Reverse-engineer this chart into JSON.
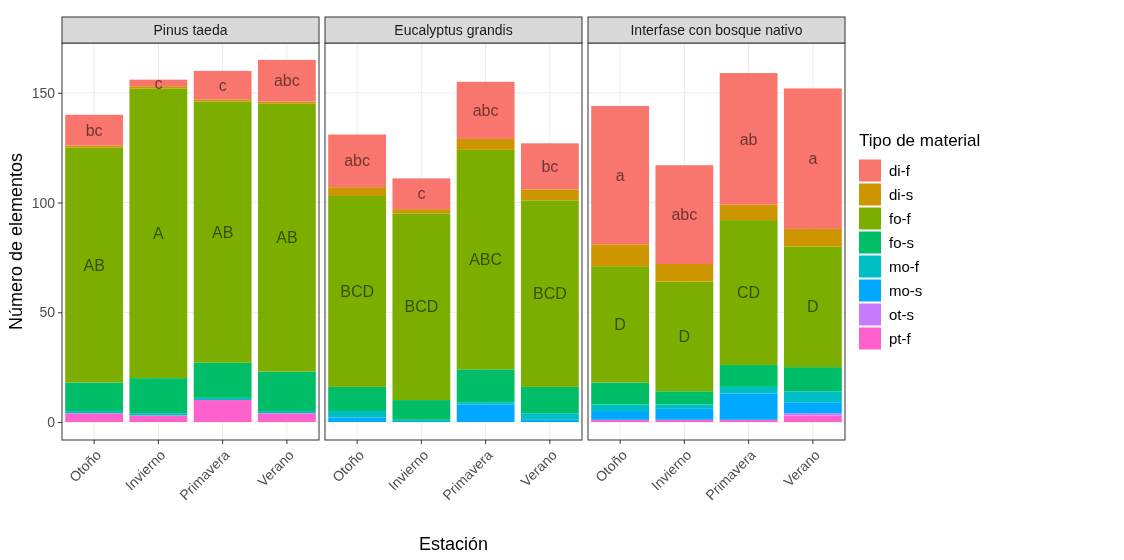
{
  "chart_data": [
    {
      "type": "bar",
      "stacked": true,
      "title": "Pinus taeda",
      "ylabel": "Número de elementos",
      "categories": [
        "Otoño",
        "Invierno",
        "Primavera",
        "Verano"
      ],
      "ylim": [
        -8.2,
        172.7
      ],
      "yticks": [
        0,
        50,
        100,
        150
      ],
      "grid": true,
      "legend": false,
      "series": [
        {
          "color": "#ff61cc",
          "values": [
            4,
            3,
            10,
            4
          ]
        },
        {
          "color": "#c77cff",
          "values": [
            0,
            0,
            0,
            0
          ]
        },
        {
          "color": "#00a9ff",
          "values": [
            0,
            0,
            0,
            0
          ]
        },
        {
          "color": "#00bfc4",
          "values": [
            1,
            1,
            1,
            1
          ]
        },
        {
          "color": "#00be67",
          "values": [
            13,
            16,
            16,
            18
          ]
        },
        {
          "color": "#7cae00",
          "values": [
            107,
            132,
            119,
            122
          ]
        },
        {
          "color": "#cd9600",
          "values": [
            1,
            1,
            1,
            1
          ]
        },
        {
          "color": "#f8766d",
          "values": [
            14,
            3,
            13,
            19
          ]
        }
      ],
      "annotations": [
        "bc",
        "c",
        "c",
        "abc",
        "AB",
        "A",
        "AB",
        "AB"
      ]
    },
    {
      "type": "bar",
      "stacked": true,
      "title": "Eucalyptus grandis",
      "xlabel": "Estación",
      "categories": [
        "Otoño",
        "Invierno",
        "Primavera",
        "Verano"
      ],
      "ylim": [
        -8.2,
        172.7
      ],
      "yticks": [
        0,
        50,
        100,
        150
      ],
      "grid": true,
      "legend": false,
      "tick_labels": "x",
      "series": [
        {
          "color": "#ff61cc",
          "values": [
            0,
            0,
            0,
            0
          ]
        },
        {
          "color": "#c77cff",
          "values": [
            0,
            0,
            0,
            0
          ]
        },
        {
          "color": "#00a9ff",
          "values": [
            2,
            0,
            8,
            1
          ]
        },
        {
          "color": "#00bfc4",
          "values": [
            3,
            1,
            1,
            3
          ]
        },
        {
          "color": "#00be67",
          "values": [
            11,
            9,
            15,
            12
          ]
        },
        {
          "color": "#7cae00",
          "values": [
            87,
            85,
            100,
            85
          ]
        },
        {
          "color": "#cd9600",
          "values": [
            4,
            2,
            5,
            5
          ]
        },
        {
          "color": "#f8766d",
          "values": [
            24,
            14,
            26,
            21
          ]
        }
      ],
      "annotations": [
        "abc",
        "c",
        "abc",
        "bc",
        "BCD",
        "BCD",
        "ABC",
        "BCD"
      ]
    },
    {
      "type": "bar",
      "stacked": true,
      "title": "Interfase con bosque nativo",
      "legend_title": "Tipo de material",
      "categories": [
        "Otoño",
        "Invierno",
        "Primavera",
        "Verano"
      ],
      "ylim": [
        -8.2,
        172.7
      ],
      "yticks": [
        0,
        50,
        100,
        150
      ],
      "grid": true,
      "legend": "right",
      "tick_labels": "x",
      "series": [
        {
          "name": "pt-f",
          "color": "#ff61cc",
          "values": [
            1,
            1,
            1,
            3
          ]
        },
        {
          "name": "ot-s",
          "color": "#c77cff",
          "values": [
            0,
            0,
            0,
            1
          ]
        },
        {
          "name": "mo-s",
          "color": "#00a9ff",
          "values": [
            4,
            5,
            12,
            5
          ]
        },
        {
          "name": "mo-f",
          "color": "#00bfc4",
          "values": [
            3,
            2,
            3,
            5
          ]
        },
        {
          "name": "fo-s",
          "color": "#00be67",
          "values": [
            10,
            6,
            10,
            11
          ]
        },
        {
          "name": "fo-f",
          "color": "#7cae00",
          "values": [
            53,
            50,
            66,
            55
          ]
        },
        {
          "name": "di-s",
          "color": "#cd9600",
          "values": [
            10,
            8,
            7,
            8
          ]
        },
        {
          "name": "di-f",
          "color": "#f8766d",
          "values": [
            63,
            45,
            60,
            64
          ]
        }
      ],
      "annotations": [
        "a",
        "abc",
        "ab",
        "a",
        "D",
        "D",
        "CD",
        "D"
      ]
    }
  ]
}
